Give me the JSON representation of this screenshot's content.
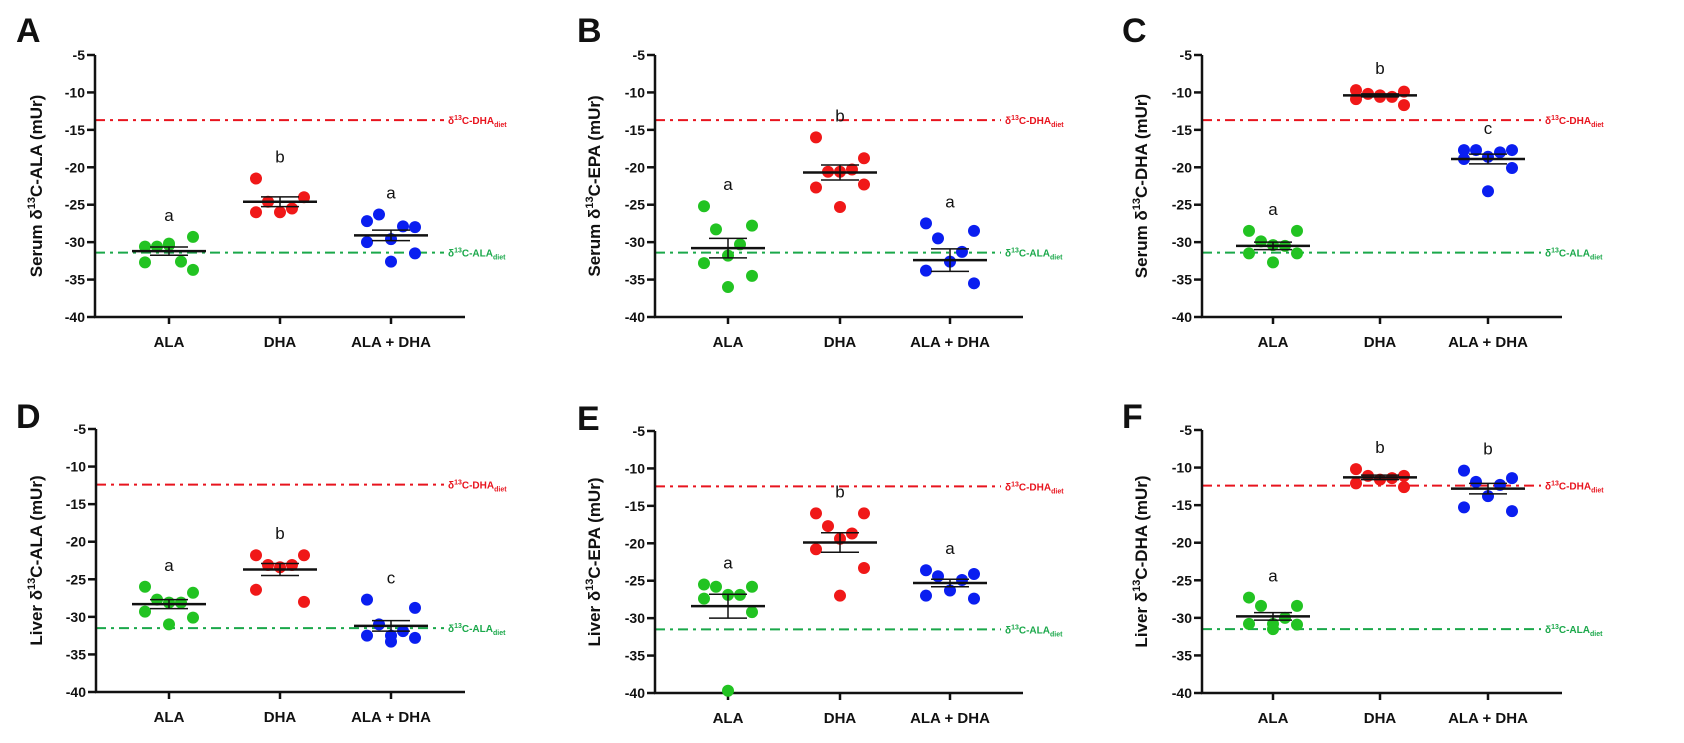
{
  "chart_data": [
    {
      "type": "scatter",
      "panel": "A",
      "ylabel": {
        "prefix": "Serum δ",
        "sup": "13",
        "suffix": "C-ALA (mUr)"
      },
      "categories": [
        "ALA",
        "DHA",
        "ALA + DHA"
      ],
      "ylim": [
        -40,
        -5
      ],
      "yticks": [
        -5,
        -10,
        -15,
        -20,
        -25,
        -30,
        -35,
        -40
      ],
      "series": [
        {
          "name": "ALA",
          "color": "#22c322",
          "values": [
            -30.6,
            -29.3,
            -30.6,
            -32.6,
            -30.4,
            -32.7,
            -33.7,
            -30.2
          ],
          "mean": -31.2,
          "sem": 0.55,
          "significance": "a"
        },
        {
          "name": "DHA",
          "color": "#f01818",
          "values": [
            -21.5,
            -24.0,
            -24.6,
            -25.5,
            -26.0,
            -26.0
          ],
          "mean": -24.6,
          "sem": 0.65,
          "significance": "b"
        },
        {
          "name": "ALA + DHA",
          "color": "#0a1ef0",
          "values": [
            -27.2,
            -28.0,
            -26.3,
            -27.9,
            -29.6,
            -30.0,
            -31.5,
            -32.6
          ],
          "mean": -29.1,
          "sem": 0.7,
          "significance": "a"
        }
      ],
      "reference_lines": [
        {
          "label_main": "δ",
          "label_sup": "13",
          "label_text": "C-DHA",
          "label_sub": "diet",
          "value": -13.7,
          "color": "#e8141e"
        },
        {
          "label_main": "δ",
          "label_sup": "13",
          "label_text": "C-ALA",
          "label_sub": "diet",
          "value": -31.4,
          "color": "#1aa84a"
        }
      ]
    },
    {
      "type": "scatter",
      "panel": "B",
      "ylabel": {
        "prefix": "Serum δ",
        "sup": "13",
        "suffix": "C-EPA (mUr)"
      },
      "categories": [
        "ALA",
        "DHA",
        "ALA + DHA"
      ],
      "ylim": [
        -40,
        -5
      ],
      "yticks": [
        -5,
        -10,
        -15,
        -20,
        -25,
        -30,
        -35,
        -40
      ],
      "series": [
        {
          "name": "ALA",
          "color": "#22c322",
          "values": [
            -25.2,
            -27.8,
            -28.3,
            -30.3,
            -31.8,
            -32.8,
            -34.5,
            -36.0
          ],
          "mean": -30.8,
          "sem": 1.3,
          "significance": "a"
        },
        {
          "name": "DHA",
          "color": "#f01818",
          "values": [
            -16.0,
            -18.8,
            -20.6,
            -20.3,
            -20.6,
            -22.7,
            -22.3,
            -25.3
          ],
          "mean": -20.7,
          "sem": 1.0,
          "significance": "b"
        },
        {
          "name": "ALA + DHA",
          "color": "#0a1ef0",
          "values": [
            -27.5,
            -28.5,
            -29.5,
            -31.3,
            -32.6,
            -33.8,
            -35.5
          ],
          "mean": -32.4,
          "sem": 1.5,
          "significance": "a"
        }
      ],
      "reference_lines": [
        {
          "label_main": "δ",
          "label_sup": "13",
          "label_text": "C-DHA",
          "label_sub": "diet",
          "value": -13.7,
          "color": "#e8141e"
        },
        {
          "label_main": "δ",
          "label_sup": "13",
          "label_text": "C-ALA",
          "label_sub": "diet",
          "value": -31.4,
          "color": "#1aa84a"
        }
      ]
    },
    {
      "type": "scatter",
      "panel": "C",
      "ylabel": {
        "prefix": "Serum δ",
        "sup": "13",
        "suffix": "C-DHA (mUr)"
      },
      "categories": [
        "ALA",
        "DHA",
        "ALA + DHA"
      ],
      "ylim": [
        -40,
        -5
      ],
      "yticks": [
        -5,
        -10,
        -15,
        -20,
        -25,
        -30,
        -35,
        -40
      ],
      "series": [
        {
          "name": "ALA",
          "color": "#22c322",
          "values": [
            -28.5,
            -28.5,
            -29.9,
            -30.5,
            -30.4,
            -31.5,
            -31.5,
            -32.7
          ],
          "mean": -30.5,
          "sem": 0.5,
          "significance": "a"
        },
        {
          "name": "DHA",
          "color": "#f01818",
          "values": [
            -9.7,
            -9.9,
            -10.2,
            -10.6,
            -10.6,
            -10.9,
            -11.7,
            -10.4
          ],
          "mean": -10.4,
          "sem": 0.2,
          "significance": "b"
        },
        {
          "name": "ALA + DHA",
          "color": "#0a1ef0",
          "values": [
            -17.7,
            -17.7,
            -17.7,
            -18.0,
            -18.6,
            -18.9,
            -20.1,
            -23.2
          ],
          "mean": -18.9,
          "sem": 0.65,
          "significance": "c"
        }
      ],
      "reference_lines": [
        {
          "label_main": "δ",
          "label_sup": "13",
          "label_text": "C-DHA",
          "label_sub": "diet",
          "value": -13.7,
          "color": "#e8141e"
        },
        {
          "label_main": "δ",
          "label_sup": "13",
          "label_text": "C-ALA",
          "label_sub": "diet",
          "value": -31.4,
          "color": "#1aa84a"
        }
      ]
    },
    {
      "type": "scatter",
      "panel": "D",
      "ylabel": {
        "prefix": "Liver δ",
        "sup": "13",
        "suffix": "C-ALA (mUr)"
      },
      "categories": [
        "ALA",
        "DHA",
        "ALA + DHA"
      ],
      "ylim": [
        -40,
        -5
      ],
      "yticks": [
        -5,
        -10,
        -15,
        -20,
        -25,
        -30,
        -35,
        -40
      ],
      "series": [
        {
          "name": "ALA",
          "color": "#22c322",
          "values": [
            -26.0,
            -26.8,
            -27.7,
            -28.1,
            -28.1,
            -29.3,
            -30.1,
            -31.0
          ],
          "mean": -28.3,
          "sem": 0.6,
          "significance": "a"
        },
        {
          "name": "DHA",
          "color": "#f01818",
          "values": [
            -21.8,
            -21.8,
            -23.1,
            -23.1,
            -23.4,
            -26.4,
            -28.0
          ],
          "mean": -23.7,
          "sem": 0.8,
          "significance": "b"
        },
        {
          "name": "ALA + DHA",
          "color": "#0a1ef0",
          "values": [
            -27.7,
            -28.8,
            -31.0,
            -31.9,
            -32.5,
            -32.5,
            -32.8,
            -33.3
          ],
          "mean": -31.2,
          "sem": 0.7,
          "significance": "c"
        }
      ],
      "reference_lines": [
        {
          "label_main": "δ",
          "label_sup": "13",
          "label_text": "C-DHA",
          "label_sub": "diet",
          "value": -12.4,
          "color": "#e8141e"
        },
        {
          "label_main": "δ",
          "label_sup": "13",
          "label_text": "C-ALA",
          "label_sub": "diet",
          "value": -31.5,
          "color": "#1aa84a"
        }
      ]
    },
    {
      "type": "scatter",
      "panel": "E",
      "ylabel": {
        "prefix": "Liver δ",
        "sup": "13",
        "suffix": "C-EPA (mUr)"
      },
      "categories": [
        "ALA",
        "DHA",
        "ALA + DHA"
      ],
      "ylim": [
        -40,
        -5
      ],
      "yticks": [
        -5,
        -10,
        -15,
        -20,
        -25,
        -30,
        -35,
        -40
      ],
      "series": [
        {
          "name": "ALA",
          "color": "#22c322",
          "values": [
            -25.5,
            -25.8,
            -25.8,
            -26.9,
            -26.9,
            -27.4,
            -29.2,
            -39.7
          ],
          "mean": -28.4,
          "sem": 1.6,
          "significance": "a"
        },
        {
          "name": "DHA",
          "color": "#f01818",
          "values": [
            -16.0,
            -16.0,
            -17.7,
            -18.7,
            -19.4,
            -20.8,
            -23.3,
            -27.0
          ],
          "mean": -19.9,
          "sem": 1.3,
          "significance": "b"
        },
        {
          "name": "ALA + DHA",
          "color": "#0a1ef0",
          "values": [
            -23.6,
            -24.1,
            -24.4,
            -24.9,
            -26.3,
            -27.0,
            -27.4
          ],
          "mean": -25.3,
          "sem": 0.5,
          "significance": "a"
        }
      ],
      "reference_lines": [
        {
          "label_main": "δ",
          "label_sup": "13",
          "label_text": "C-DHA",
          "label_sub": "diet",
          "value": -12.4,
          "color": "#e8141e"
        },
        {
          "label_main": "δ",
          "label_sup": "13",
          "label_text": "C-ALA",
          "label_sub": "diet",
          "value": -31.5,
          "color": "#1aa84a"
        }
      ]
    },
    {
      "type": "scatter",
      "panel": "F",
      "ylabel": {
        "prefix": "Liver δ",
        "sup": "13",
        "suffix": "C-DHA (mUr)"
      },
      "categories": [
        "ALA",
        "DHA",
        "ALA + DHA"
      ],
      "ylim": [
        -40,
        -5
      ],
      "yticks": [
        -5,
        -10,
        -15,
        -20,
        -25,
        -30,
        -35,
        -40
      ],
      "series": [
        {
          "name": "ALA",
          "color": "#22c322",
          "values": [
            -27.3,
            -28.4,
            -28.4,
            -30.0,
            -30.8,
            -30.8,
            -30.9,
            -31.5
          ],
          "mean": -29.8,
          "sem": 0.5,
          "significance": "a"
        },
        {
          "name": "DHA",
          "color": "#f01818",
          "values": [
            -10.2,
            -11.1,
            -11.1,
            -11.4,
            -11.6,
            -12.1,
            -12.6
          ],
          "mean": -11.3,
          "sem": 0.3,
          "significance": "b"
        },
        {
          "name": "ALA + DHA",
          "color": "#0a1ef0",
          "values": [
            -10.4,
            -11.4,
            -11.9,
            -12.3,
            -13.8,
            -15.3,
            -15.8
          ],
          "mean": -12.8,
          "sem": 0.7,
          "significance": "b"
        }
      ],
      "reference_lines": [
        {
          "label_main": "δ",
          "label_sup": "13",
          "label_text": "C-DHA",
          "label_sub": "diet",
          "value": -12.4,
          "color": "#e8141e"
        },
        {
          "label_main": "δ",
          "label_sup": "13",
          "label_text": "C-ALA",
          "label_sub": "diet",
          "value": -31.5,
          "color": "#1aa84a"
        }
      ]
    }
  ]
}
